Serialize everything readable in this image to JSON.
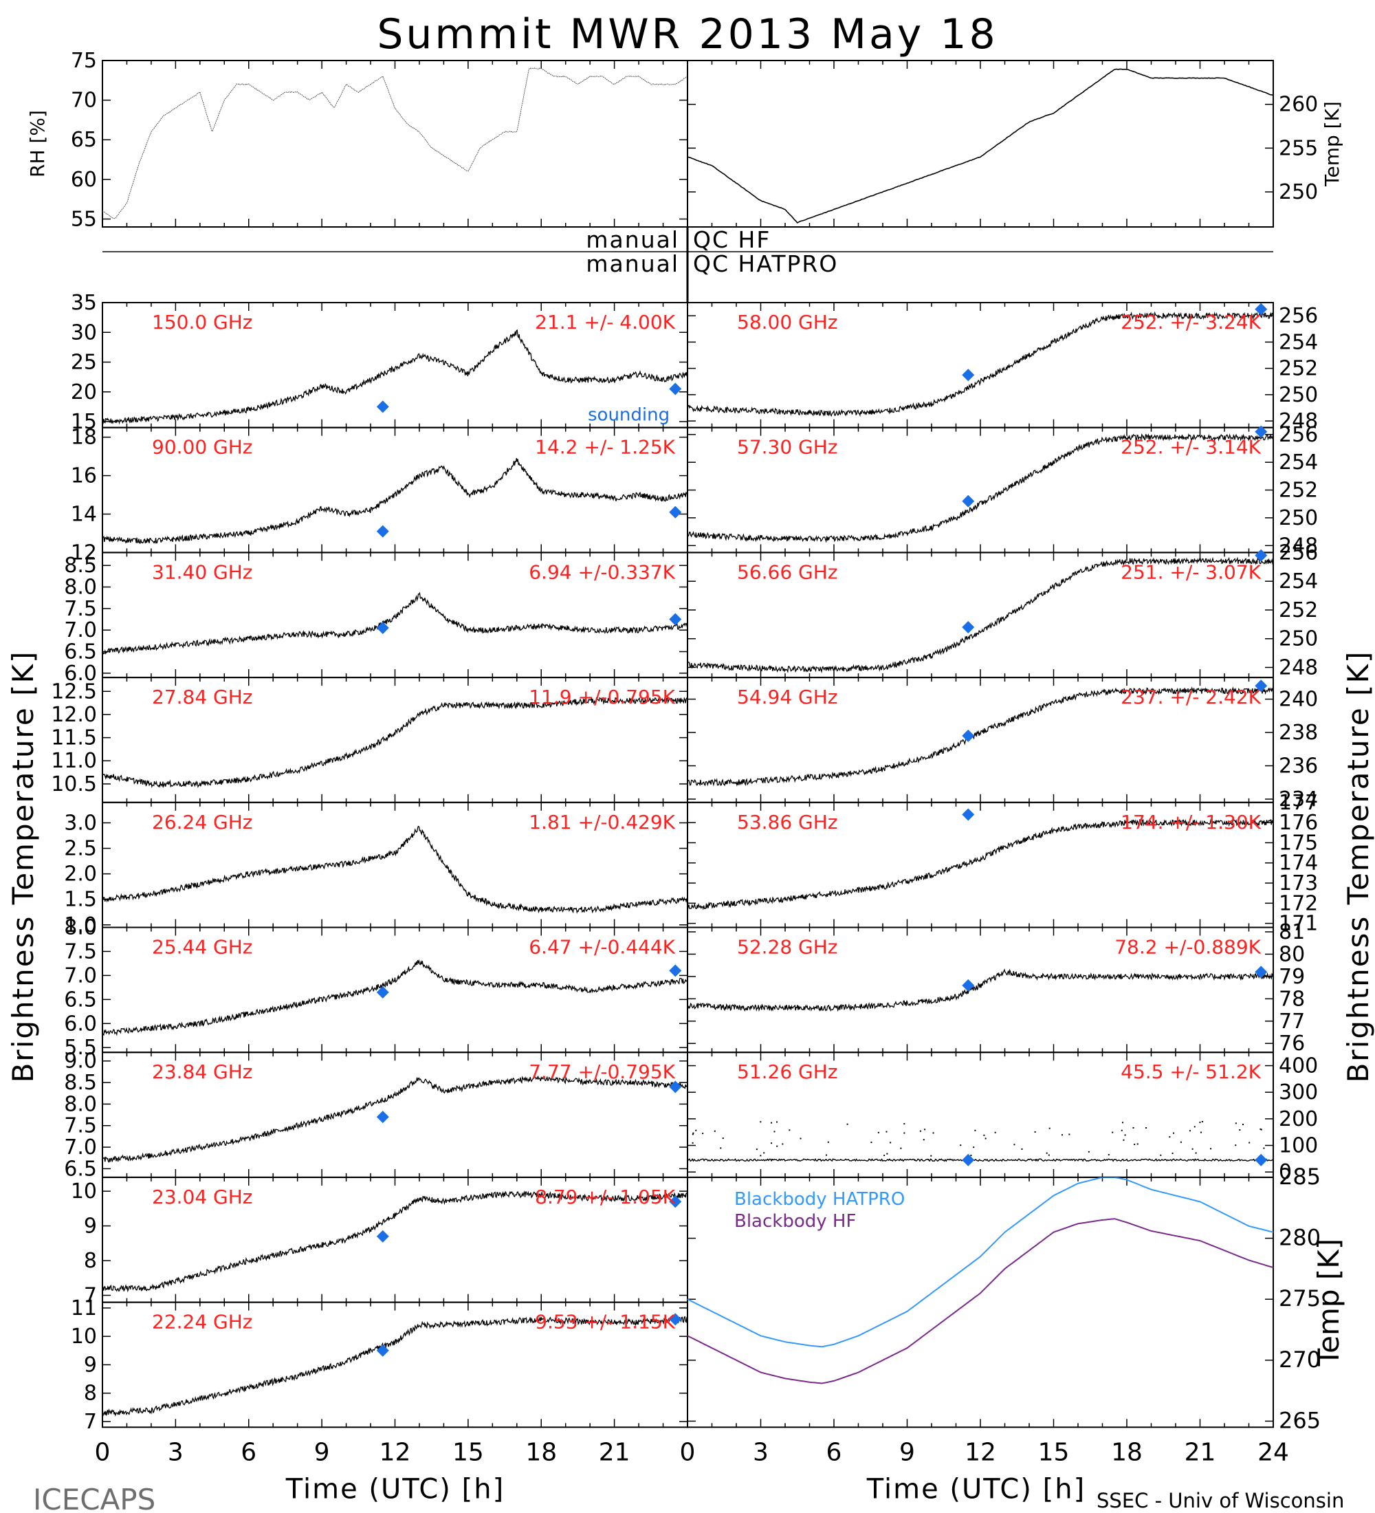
{
  "figure": {
    "title": "Summit MWR 2013 May 18",
    "footer_left": "ICECAPS",
    "footer_right": "SSEC - Univ of Wisconsin",
    "left_ylabel": "Brightness Temperature [K]",
    "right_ylabel": "Brightness Temperature [K]",
    "qc_hf_label": "manual QC HF",
    "qc_hatpro_label": "manual QC HATPRO",
    "colors": {
      "trace": "#000000",
      "channel_label": "#ff2020",
      "sounding": "#1a6fe6",
      "bb_hatpro": "#3399ff",
      "bb_hf": "#7a2a8a"
    }
  },
  "chart_data": [
    {
      "id": "rh",
      "type": "line",
      "ylabel": "RH [%]",
      "xlim": [
        0,
        24
      ],
      "ylim": [
        54,
        75
      ],
      "yticks": [
        55,
        60,
        65,
        70,
        75
      ],
      "x": [
        0,
        0.5,
        1,
        1.5,
        2,
        2.5,
        3,
        3.5,
        4,
        4.5,
        5,
        5.5,
        6,
        6.5,
        7,
        7.5,
        8,
        8.5,
        9,
        9.5,
        10,
        10.5,
        11,
        11.5,
        12,
        12.5,
        13,
        13.5,
        14,
        14.5,
        15,
        15.5,
        16,
        16.5,
        17,
        17.5,
        18,
        18.5,
        19,
        19.5,
        20,
        20.5,
        21,
        21.5,
        22,
        22.5,
        23,
        23.5,
        24
      ],
      "y": [
        56,
        55,
        57,
        62,
        66,
        68,
        69,
        70,
        71,
        66,
        70,
        72,
        72,
        71,
        70,
        71,
        71,
        70,
        71,
        69,
        72,
        71,
        72,
        73,
        69,
        67,
        66,
        64,
        63,
        62,
        61,
        64,
        65,
        66,
        66,
        74,
        74,
        73,
        73,
        72,
        73,
        73,
        72,
        73,
        73,
        72,
        72,
        72,
        73
      ]
    },
    {
      "id": "temp",
      "type": "line",
      "ylabel": "Temp [K]",
      "xlim": [
        0,
        24
      ],
      "ylim": [
        246,
        265
      ],
      "yticks": [
        250,
        255,
        260
      ],
      "x": [
        0,
        1,
        2,
        3,
        4,
        4.5,
        5,
        6,
        7,
        8,
        9,
        10,
        11,
        12,
        13,
        14,
        15,
        16,
        17,
        17.5,
        18,
        19,
        20,
        21,
        22,
        23,
        24
      ],
      "y": [
        254,
        253,
        251,
        249,
        248,
        246.5,
        247,
        248,
        249,
        250,
        251,
        252,
        253,
        254,
        256,
        258,
        259,
        261,
        263,
        264,
        264,
        263,
        263,
        263,
        263,
        262,
        261
      ]
    },
    {
      "id": "c150",
      "type": "line",
      "channel": "150.0 GHz",
      "stat": "21.1 +/- 4.00K",
      "ylim": [
        14,
        35
      ],
      "yticks": [
        15,
        20,
        25,
        30,
        35
      ],
      "sounding_label": "sounding",
      "x": [
        0,
        2,
        4,
        6,
        8,
        9,
        10,
        11,
        12,
        13,
        14,
        15,
        16,
        17,
        18,
        19,
        20,
        21,
        22,
        23,
        24
      ],
      "y": [
        15,
        15.5,
        16,
        17,
        19,
        21,
        20,
        22,
        24,
        26,
        25,
        23,
        27,
        30,
        23,
        22,
        22,
        22,
        23,
        22,
        23
      ],
      "sounding_x": [
        11.5,
        23.5
      ],
      "sounding_y": [
        17.5,
        20.5
      ]
    },
    {
      "id": "c90",
      "type": "line",
      "channel": "90.00 GHz",
      "stat": "14.2 +/- 1.25K",
      "ylim": [
        12,
        18.5
      ],
      "yticks": [
        12,
        14,
        16,
        18
      ],
      "x": [
        0,
        2,
        4,
        6,
        8,
        9,
        10,
        11,
        12,
        13,
        14,
        15,
        16,
        17,
        18,
        19,
        20,
        21,
        22,
        23,
        24
      ],
      "y": [
        12.7,
        12.6,
        12.8,
        13,
        13.6,
        14.3,
        14,
        14.2,
        15,
        16,
        16.4,
        15,
        15.4,
        16.8,
        15.2,
        15,
        15,
        14.8,
        15,
        14.8,
        15
      ],
      "sounding_x": [
        11.5,
        23.5
      ],
      "sounding_y": [
        13.1,
        14.1
      ]
    },
    {
      "id": "c31",
      "type": "line",
      "channel": "31.40 GHz",
      "stat": "6.94 +/-0.337K",
      "ylim": [
        5.9,
        8.8
      ],
      "yticks": [
        6.0,
        6.5,
        7.0,
        7.5,
        8.0,
        8.5
      ],
      "x": [
        0,
        2,
        4,
        6,
        8,
        10,
        11,
        12,
        13,
        14,
        15,
        16,
        18,
        20,
        22,
        24
      ],
      "y": [
        6.5,
        6.6,
        6.7,
        6.8,
        6.9,
        6.9,
        7.0,
        7.3,
        7.8,
        7.3,
        7.0,
        7.0,
        7.1,
        7.0,
        7.0,
        7.1
      ],
      "sounding_x": [
        11.5,
        23.5
      ],
      "sounding_y": [
        7.05,
        7.25
      ]
    },
    {
      "id": "c2784",
      "type": "line",
      "channel": "27.84 GHz",
      "stat": "11.9 +/-0.795K",
      "ylim": [
        10.1,
        12.8
      ],
      "yticks": [
        10.5,
        11.0,
        11.5,
        12.0,
        12.5
      ],
      "x": [
        0,
        2,
        4,
        6,
        8,
        10,
        11,
        12,
        13,
        14,
        16,
        18,
        20,
        22,
        24
      ],
      "y": [
        10.7,
        10.5,
        10.5,
        10.6,
        10.8,
        11.1,
        11.3,
        11.6,
        12.0,
        12.2,
        12.2,
        12.2,
        12.3,
        12.3,
        12.3
      ]
    },
    {
      "id": "c2624",
      "type": "line",
      "channel": "26.24 GHz",
      "stat": "1.81 +/-0.429K",
      "ylim": [
        0.95,
        3.4
      ],
      "yticks": [
        1.0,
        1.5,
        2.0,
        2.5,
        3.0
      ],
      "x": [
        0,
        2,
        4,
        6,
        8,
        10,
        12,
        13,
        14,
        15,
        16,
        18,
        20,
        22,
        24
      ],
      "y": [
        1.5,
        1.6,
        1.8,
        2.0,
        2.1,
        2.2,
        2.4,
        2.9,
        2.2,
        1.6,
        1.4,
        1.3,
        1.3,
        1.4,
        1.5
      ]
    },
    {
      "id": "c2544",
      "type": "line",
      "channel": "25.44 GHz",
      "stat": "6.47 +/-0.444K",
      "ylim": [
        5.4,
        8.0
      ],
      "yticks": [
        5.5,
        6.0,
        6.5,
        7.0,
        7.5,
        8.0
      ],
      "x": [
        0,
        2,
        4,
        6,
        8,
        10,
        11,
        12,
        13,
        14,
        16,
        18,
        20,
        22,
        24
      ],
      "y": [
        5.8,
        5.9,
        6.0,
        6.2,
        6.4,
        6.6,
        6.7,
        6.9,
        7.3,
        6.9,
        6.8,
        6.8,
        6.7,
        6.8,
        6.9
      ],
      "sounding_x": [
        11.5,
        23.5
      ],
      "sounding_y": [
        6.65,
        7.1
      ]
    },
    {
      "id": "c2384",
      "type": "line",
      "channel": "23.84 GHz",
      "stat": "7.77 +/-0.795K",
      "ylim": [
        6.3,
        9.2
      ],
      "yticks": [
        6.5,
        7.0,
        7.5,
        8.0,
        8.5,
        9.0
      ],
      "x": [
        0,
        2,
        4,
        6,
        8,
        10,
        11,
        12,
        13,
        14,
        16,
        18,
        20,
        22,
        24
      ],
      "y": [
        6.7,
        6.8,
        7.0,
        7.2,
        7.5,
        7.8,
        8.0,
        8.2,
        8.6,
        8.3,
        8.5,
        8.6,
        8.5,
        8.5,
        8.4
      ],
      "sounding_x": [
        11.5,
        23.5
      ],
      "sounding_y": [
        7.7,
        8.4
      ]
    },
    {
      "id": "c2304",
      "type": "line",
      "channel": "23.04 GHz",
      "stat": "8.79 +/- 1.05K",
      "ylim": [
        6.8,
        10.4
      ],
      "yticks": [
        7,
        8,
        9,
        10
      ],
      "x": [
        0,
        2,
        4,
        6,
        8,
        10,
        11,
        12,
        13,
        14,
        16,
        18,
        20,
        22,
        24
      ],
      "y": [
        7.2,
        7.2,
        7.6,
        8.0,
        8.3,
        8.6,
        8.9,
        9.3,
        9.8,
        9.7,
        9.9,
        9.9,
        9.8,
        9.8,
        9.9
      ],
      "sounding_x": [
        11.5,
        23.5
      ],
      "sounding_y": [
        8.7,
        9.7
      ]
    },
    {
      "id": "c2224",
      "type": "line",
      "channel": "22.24 GHz",
      "stat": "9.53 +/- 1.15K",
      "ylim": [
        6.8,
        11.2
      ],
      "yticks": [
        7,
        8,
        9,
        10,
        11
      ],
      "x": [
        0,
        2,
        4,
        6,
        8,
        10,
        11,
        12,
        13,
        14,
        16,
        18,
        20,
        22,
        24
      ],
      "y": [
        7.3,
        7.4,
        7.8,
        8.2,
        8.6,
        9.1,
        9.5,
        9.8,
        10.4,
        10.4,
        10.5,
        10.6,
        10.5,
        10.5,
        10.6
      ],
      "sounding_x": [
        11.5,
        23.5
      ],
      "sounding_y": [
        9.5,
        10.6
      ]
    },
    {
      "id": "c5800",
      "type": "line",
      "channel": "58.00 GHz",
      "stat": "252. +/- 3.24K",
      "ylim": [
        247.5,
        257
      ],
      "yticks": [
        248,
        250,
        252,
        254,
        256
      ],
      "x": [
        0,
        2,
        4,
        6,
        8,
        10,
        11,
        12,
        13,
        14,
        15,
        16,
        17,
        18,
        20,
        22,
        24
      ],
      "y": [
        249,
        248.8,
        248.7,
        248.6,
        248.7,
        249.3,
        250,
        251,
        252,
        253,
        254,
        255,
        255.8,
        256,
        256,
        256,
        256
      ],
      "sounding_x": [
        11.5,
        23.5
      ],
      "sounding_y": [
        251.5,
        256.5
      ]
    },
    {
      "id": "c5730",
      "type": "line",
      "channel": "57.30 GHz",
      "stat": "252. +/- 3.14K",
      "ylim": [
        247.5,
        256.5
      ],
      "yticks": [
        248,
        250,
        252,
        254,
        256
      ],
      "x": [
        0,
        2,
        4,
        6,
        8,
        10,
        11,
        12,
        13,
        14,
        15,
        16,
        17,
        18,
        20,
        22,
        24
      ],
      "y": [
        248.8,
        248.6,
        248.5,
        248.5,
        248.6,
        249.3,
        250,
        251,
        252,
        253,
        254,
        255,
        255.6,
        255.8,
        255.8,
        255.8,
        255.8
      ],
      "sounding_x": [
        11.5,
        23.5
      ],
      "sounding_y": [
        251.2,
        256.2
      ]
    },
    {
      "id": "c5666",
      "type": "line",
      "channel": "56.66 GHz",
      "stat": "251. +/- 3.07K",
      "ylim": [
        247.3,
        256
      ],
      "yticks": [
        248,
        250,
        252,
        254,
        256
      ],
      "x": [
        0,
        2,
        4,
        6,
        8,
        10,
        11,
        12,
        13,
        14,
        15,
        16,
        17,
        18,
        20,
        22,
        24
      ],
      "y": [
        248.2,
        248,
        247.9,
        247.9,
        248,
        248.8,
        249.6,
        250.5,
        251.5,
        252.5,
        253.6,
        254.6,
        255.2,
        255.4,
        255.4,
        255.4,
        255.4
      ],
      "sounding_x": [
        11.5,
        23.5
      ],
      "sounding_y": [
        250.8,
        255.8
      ]
    },
    {
      "id": "c5494",
      "type": "line",
      "channel": "54.94 GHz",
      "stat": "237. +/- 2.42K",
      "ylim": [
        233.8,
        241.3
      ],
      "yticks": [
        234,
        236,
        238,
        240
      ],
      "x": [
        0,
        2,
        4,
        6,
        8,
        10,
        11,
        12,
        13,
        14,
        15,
        16,
        17,
        18,
        20,
        22,
        24
      ],
      "y": [
        235,
        235,
        235.2,
        235.4,
        235.8,
        236.6,
        237.2,
        238,
        238.6,
        239.2,
        239.8,
        240.2,
        240.4,
        240.5,
        240.5,
        240.5,
        240.5
      ],
      "sounding_x": [
        11.5,
        23.5
      ],
      "sounding_y": [
        237.8,
        240.8
      ]
    },
    {
      "id": "c5386",
      "type": "line",
      "channel": "53.86 GHz",
      "stat": "174. +/- 1.30K",
      "ylim": [
        170.8,
        177
      ],
      "yticks": [
        171,
        172,
        173,
        174,
        175,
        176,
        177
      ],
      "x": [
        0,
        2,
        4,
        6,
        8,
        10,
        11,
        12,
        13,
        14,
        15,
        16,
        18,
        20,
        22,
        24
      ],
      "y": [
        171.8,
        172,
        172.2,
        172.5,
        172.8,
        173.4,
        173.8,
        174.2,
        174.8,
        175.2,
        175.6,
        175.8,
        176,
        176,
        176,
        176
      ],
      "sounding_x": [
        11.5
      ],
      "sounding_y": [
        176.4
      ]
    },
    {
      "id": "c5228",
      "type": "line",
      "channel": "52.28 GHz",
      "stat": "78.2 +/-0.889K",
      "ylim": [
        75.6,
        81.2
      ],
      "yticks": [
        76,
        77,
        78,
        79,
        80,
        81
      ],
      "x": [
        0,
        2,
        4,
        6,
        8,
        10,
        11,
        12,
        13,
        14,
        16,
        18,
        20,
        22,
        24
      ],
      "y": [
        77.7,
        77.6,
        77.6,
        77.6,
        77.7,
        77.9,
        78.1,
        78.6,
        79.2,
        79.0,
        79.0,
        79.0,
        79.0,
        79.0,
        79.0
      ],
      "sounding_x": [
        11.5,
        23.5
      ],
      "sounding_y": [
        78.6,
        79.2
      ]
    },
    {
      "id": "c5126",
      "type": "scatter",
      "channel": "51.26 GHz",
      "stat": "45.5 +/- 51.2K",
      "ylim": [
        -20,
        450
      ],
      "yticks": [
        0,
        100,
        200,
        300,
        400
      ],
      "x": [
        0,
        4,
        8,
        12,
        16,
        20,
        24
      ],
      "y": [
        45,
        45,
        45,
        45,
        45,
        45,
        45
      ],
      "sounding_x": [
        11.5,
        23.5
      ],
      "sounding_y": [
        45,
        45
      ]
    },
    {
      "id": "bb",
      "type": "line",
      "ylabel": "Temp [K]",
      "ylim": [
        264.5,
        285
      ],
      "yticks": [
        265,
        270,
        275,
        280,
        285
      ],
      "series": [
        {
          "name": "Blackbody HATPRO",
          "x": [
            0,
            1,
            2,
            3,
            4,
            5,
            5.5,
            6,
            7,
            8,
            9,
            10,
            11,
            12,
            13,
            14,
            15,
            16,
            17,
            17.5,
            18,
            19,
            20,
            21,
            22,
            23,
            24
          ],
          "y": [
            275,
            274,
            273,
            272,
            271.5,
            271.2,
            271.1,
            271.3,
            272,
            273,
            274,
            275.5,
            277,
            278.5,
            280.5,
            282,
            283.5,
            284.5,
            285,
            285,
            284.8,
            284,
            283.5,
            283,
            282,
            281,
            280.5
          ]
        },
        {
          "name": "Blackbody HF",
          "x": [
            0,
            1,
            2,
            3,
            4,
            5,
            5.5,
            6,
            7,
            8,
            9,
            10,
            11,
            12,
            13,
            14,
            15,
            16,
            17,
            17.5,
            18,
            19,
            20,
            21,
            22,
            23,
            24
          ],
          "y": [
            272,
            271,
            270,
            269,
            268.5,
            268.2,
            268.1,
            268.3,
            269,
            270,
            271,
            272.5,
            274,
            275.5,
            277.5,
            279,
            280.5,
            281.2,
            281.5,
            281.6,
            281.3,
            280.6,
            280.2,
            279.8,
            279,
            278.2,
            277.6
          ]
        }
      ]
    }
  ]
}
